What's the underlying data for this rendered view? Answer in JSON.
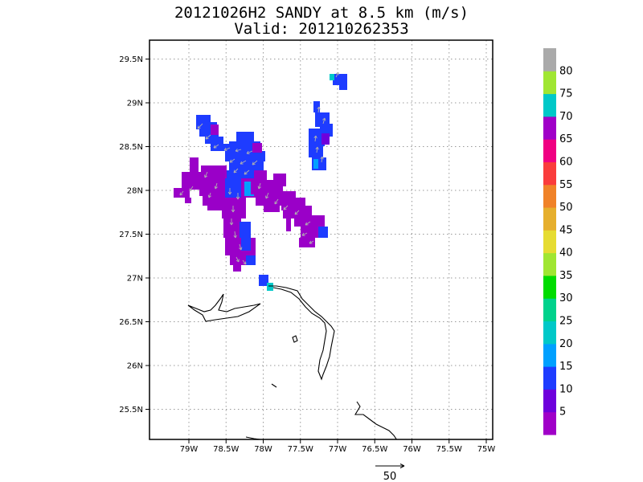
{
  "title": "20121026H2 SANDY at 8.5 km (m/s)",
  "subtitle": "Valid: 201210262353",
  "map": {
    "lon_range": [
      -79.5,
      -75.0
    ],
    "lat_range": [
      25.15,
      29.7
    ],
    "x_ticks": [
      "79W",
      "78.5W",
      "78W",
      "77.5W",
      "77W",
      "76.5W",
      "76W",
      "75.5W",
      "75W"
    ],
    "y_ticks": [
      "29.5N",
      "29N",
      "28.5N",
      "28N",
      "27.5N",
      "27N",
      "26.5N",
      "26N",
      "25.5N"
    ],
    "grid": "dotted"
  },
  "colorbar": {
    "labels": [
      "5",
      "10",
      "15",
      "20",
      "25",
      "30",
      "35",
      "40",
      "45",
      "50",
      "55",
      "60",
      "65",
      "70",
      "75",
      "80"
    ],
    "colors": [
      "#a000c8",
      "#6e00dc",
      "#1e3cff",
      "#00a0ff",
      "#00c8c8",
      "#00d28c",
      "#00dc00",
      "#a0e632",
      "#e6dc32",
      "#e6af2d",
      "#f08228",
      "#fa3c3c",
      "#f00082",
      "#a000c8",
      "#00c8c8",
      "#a0e632",
      "#aaaaaa"
    ]
  },
  "reference_vector": {
    "label": "50"
  }
}
